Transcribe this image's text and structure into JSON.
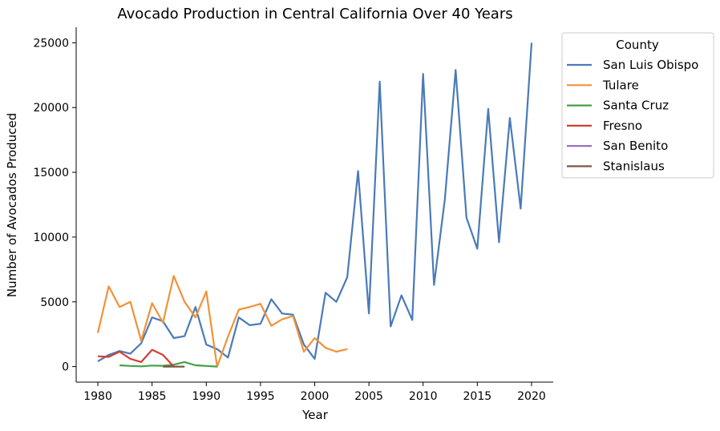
{
  "chart_data": {
    "type": "line",
    "title": "Avocado Production in Central California Over 40 Years",
    "xlabel": "Year",
    "ylabel": "Number of Avocados Produced",
    "xlim": [
      1978,
      2022
    ],
    "ylim": [
      -1200,
      26200
    ],
    "xticks": [
      1980,
      1985,
      1990,
      1995,
      2000,
      2005,
      2010,
      2015,
      2020
    ],
    "yticks": [
      0,
      5000,
      10000,
      15000,
      20000,
      25000
    ],
    "grid": false,
    "legend": {
      "title": "County",
      "placement": "outside-upper-right"
    },
    "series": [
      {
        "name": "San Luis Obispo",
        "color": "#4a7ab8",
        "x": [
          1980,
          1981,
          1982,
          1983,
          1984,
          1985,
          1986,
          1987,
          1988,
          1989,
          1990,
          1991,
          1992,
          1993,
          1994,
          1995,
          1996,
          1997,
          1998,
          1999,
          2000,
          2001,
          2002,
          2003,
          2004,
          2005,
          2006,
          2007,
          2008,
          2009,
          2010,
          2011,
          2012,
          2013,
          2014,
          2015,
          2016,
          2017,
          2018,
          2019,
          2020
        ],
        "values": [
          400,
          900,
          1200,
          1000,
          1800,
          3800,
          3500,
          2200,
          2350,
          4600,
          1700,
          1350,
          700,
          3800,
          3200,
          3300,
          5200,
          4100,
          4000,
          1700,
          600,
          5700,
          5000,
          6900,
          15100,
          4100,
          22000,
          3100,
          5500,
          3600,
          22600,
          6300,
          12900,
          22900,
          11500,
          9100,
          19900,
          9600,
          19200,
          12200,
          25000
        ]
      },
      {
        "name": "Tulare",
        "color": "#f0923a",
        "x": [
          1980,
          1981,
          1982,
          1983,
          1984,
          1985,
          1986,
          1987,
          1988,
          1989,
          1990,
          1991,
          1992,
          1993,
          1994,
          1995,
          1996,
          1997,
          1998,
          1999,
          2000,
          2001,
          2002,
          2003
        ],
        "values": [
          2600,
          6200,
          4600,
          5000,
          2000,
          4900,
          3400,
          7000,
          5000,
          3800,
          5800,
          0,
          2300,
          4400,
          4600,
          4850,
          3150,
          3650,
          3900,
          1150,
          2200,
          1450,
          1150,
          1350
        ]
      },
      {
        "name": "Santa Cruz",
        "color": "#44a144",
        "x": [
          1982,
          1983,
          1984,
          1985,
          1986,
          1987,
          1988,
          1989,
          1990,
          1991
        ],
        "values": [
          100,
          50,
          20,
          80,
          60,
          150,
          350,
          100,
          50,
          0
        ]
      },
      {
        "name": "Fresno",
        "color": "#d13f37",
        "x": [
          1980,
          1981,
          1982,
          1983,
          1984,
          1985,
          1986,
          1987
        ],
        "values": [
          800,
          750,
          1150,
          600,
          350,
          1300,
          900,
          0
        ]
      },
      {
        "name": "San Benito",
        "color": "#9467bd",
        "x": [],
        "values": []
      },
      {
        "name": "Stanislaus",
        "color": "#7f5546",
        "x": [
          1986,
          1987,
          1988
        ],
        "values": [
          0,
          0,
          0
        ]
      }
    ]
  }
}
